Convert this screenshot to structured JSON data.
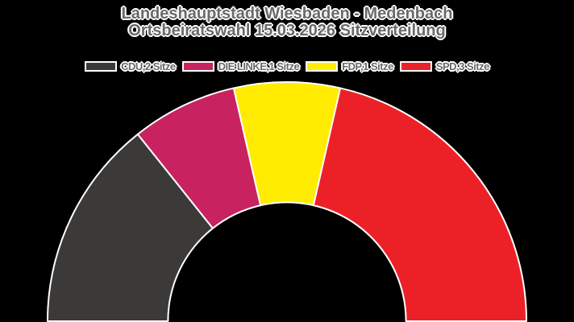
{
  "title": {
    "line1": "Landeshauptstadt Wiesbaden - Medenbach",
    "line2": "Ortsbeiratswahl 15.03.2026 Sitzverteilung"
  },
  "colors": {
    "background": "#000000",
    "text": "#6A6A6A",
    "outline": "#FFFFFF"
  },
  "chart_data": {
    "type": "pie",
    "variant": "half-donut",
    "title": "Landeshauptstadt Wiesbaden - Medenbach Ortsbeiratswahl 15.03.2026 Sitzverteilung",
    "categories": [
      "CDU",
      "DIE LINKE",
      "FDP",
      "SPD"
    ],
    "values": [
      2,
      1,
      1,
      3
    ],
    "total_seats": 7,
    "unit_label": "Sitze",
    "series": [
      {
        "name": "CDU",
        "seats": 2,
        "color": "#3B3A39",
        "legend_label": "CDU,2 Sitze"
      },
      {
        "name": "DIE LINKE",
        "seats": 1,
        "color": "#C92260",
        "legend_label": "DIE LINKE,1 Sitze"
      },
      {
        "name": "FDP",
        "seats": 1,
        "color": "#FFEC00",
        "legend_label": "FDP,1 Sitze"
      },
      {
        "name": "SPD",
        "seats": 3,
        "color": "#EC2127",
        "legend_label": "SPD,3 Sitze"
      }
    ],
    "layout": {
      "legend_position": "top",
      "start_angle_deg": 180,
      "end_angle_deg": 0,
      "inner_radius_ratio": 0.497,
      "grid": false,
      "segment_outline_color": "#FFFFFF",
      "segment_outline_width": 2
    }
  }
}
